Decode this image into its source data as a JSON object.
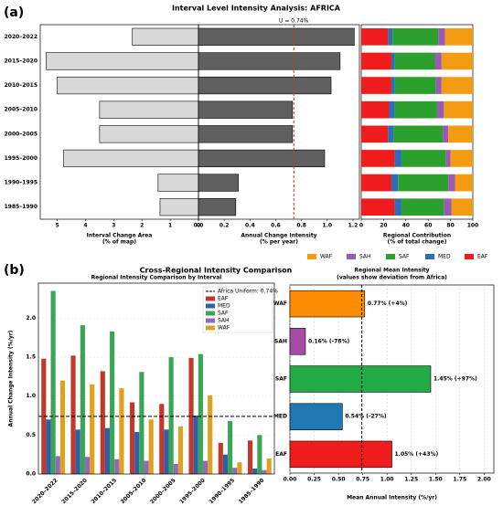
{
  "panels": {
    "a_label": "(a)",
    "a_title": "Interval Level Intensity Analysis: AFRICA",
    "b_label": "(b)",
    "b_title": "Cross-Regional Intensity Comparison"
  },
  "chart_data": [
    {
      "type": "barh",
      "xlabel": "Interval Change Area",
      "xlabel2": "(% of map)",
      "color": "#d9d9d9",
      "categories": [
        "2020–2022",
        "2015–2020",
        "2010–2015",
        "2005–2010",
        "2000–2005",
        "1995–2000",
        "1990–1995",
        "1985–1990"
      ],
      "values": [
        2.34,
        5.39,
        5.0,
        3.5,
        3.5,
        4.77,
        1.43,
        1.36
      ],
      "xlim": [
        5.6,
        0
      ],
      "xticks": [
        5,
        4,
        3,
        2,
        1,
        0
      ]
    },
    {
      "type": "barh",
      "xlabel": "Annual Change Intensity",
      "xlabel2": "(% per year)",
      "color": "#606060",
      "values": [
        1.21,
        1.1,
        1.03,
        0.73,
        0.73,
        0.98,
        0.31,
        0.29
      ],
      "xlim": [
        0,
        1.25
      ],
      "xticks": [
        {
          "value": 0,
          "label": "0.0"
        },
        0.2,
        0.4,
        0.6,
        0.8,
        {
          "value": 1,
          "label": "1.0"
        },
        1.2
      ],
      "reference_line": 0.74,
      "reference_label": "U = 0.74%",
      "reference_color": "#c0392b"
    },
    {
      "type": "stacked_barh",
      "xlabel": "Regional Contribution",
      "xlabel2": "(% of total change)",
      "xlim": [
        0,
        100
      ],
      "xticks": [
        0,
        20,
        40,
        60,
        80,
        100
      ],
      "series": [
        {
          "name": "EAF",
          "color": "#ee1c1c",
          "values": [
            24,
            27,
            27,
            25,
            24,
            30,
            27,
            30
          ]
        },
        {
          "name": "MED",
          "color": "#2a6fba",
          "values": [
            4,
            3,
            3,
            5,
            5,
            6,
            6,
            6
          ]
        },
        {
          "name": "SAF",
          "color": "#2ca02c",
          "values": [
            41,
            36,
            37,
            38,
            44,
            40,
            45,
            38
          ]
        },
        {
          "name": "SAH",
          "color": "#9b59b6",
          "values": [
            6,
            6,
            5,
            6,
            5,
            4,
            6,
            7
          ]
        },
        {
          "name": "WAF",
          "color": "#f39c12",
          "values": [
            25,
            28,
            28,
            26,
            22,
            20,
            16,
            19
          ]
        }
      ]
    },
    {
      "type": "bar",
      "title": "Regional Intensity Comparison by Interval",
      "ylabel": "Annual Change Intensity (%/yr)",
      "categories": [
        "2020–2022",
        "2015–2020",
        "2010–2015",
        "2005–2010",
        "2000–2005",
        "1995–2000",
        "1990–1995",
        "1985–1990"
      ],
      "ylim": [
        0,
        2.45
      ],
      "yticks": [
        {
          "value": 0,
          "label": "0.0"
        },
        0.5,
        {
          "value": 1,
          "label": "1.0"
        },
        1.5,
        {
          "value": 2,
          "label": "2.0"
        }
      ],
      "grid": true,
      "reference_line": 0.74,
      "reference_label": "Africa Uniform: 0.74%",
      "legend": "upper right",
      "series": [
        {
          "name": "EAF",
          "color": "#c0392b",
          "values": [
            1.48,
            1.52,
            1.32,
            0.92,
            0.9,
            1.49,
            0.4,
            0.43
          ]
        },
        {
          "name": "MED",
          "color": "#2e5fa8",
          "values": [
            0.7,
            0.57,
            0.59,
            0.54,
            0.57,
            0.75,
            0.25,
            0.07
          ]
        },
        {
          "name": "SAF",
          "color": "#3aa655",
          "values": [
            2.35,
            1.91,
            1.83,
            1.31,
            1.5,
            1.54,
            0.68,
            0.5
          ]
        },
        {
          "name": "SAH",
          "color": "#9467bd",
          "values": [
            0.23,
            0.22,
            0.19,
            0.17,
            0.13,
            0.17,
            0.08,
            0.05
          ]
        },
        {
          "name": "WAF",
          "color": "#e0a020",
          "values": [
            1.2,
            1.15,
            1.1,
            0.7,
            0.61,
            1.01,
            0.15,
            0.2
          ]
        }
      ]
    },
    {
      "type": "barh",
      "title": "Regional Mean Intensity",
      "subtitle": "(values show deviation from Africa)",
      "xlabel": "Mean Annual Intensity (%/yr)",
      "categories": [
        "WAF",
        "SAH",
        "SAF",
        "MED",
        "EAF"
      ],
      "values": [
        0.77,
        0.16,
        1.45,
        0.54,
        1.05
      ],
      "value_labels": [
        "0.77% (+4%)",
        "0.16% (-78%)",
        "1.45% (+97%)",
        "0.54% (-27%)",
        "1.05% (+43%)"
      ],
      "colors": [
        "#ff8c00",
        "#a64ca6",
        "#22aa44",
        "#1f77b4",
        "#ee1c1c"
      ],
      "xlim": [
        0,
        2.1
      ],
      "xticks": [
        {
          "value": 0,
          "label": "0.00"
        },
        0.25,
        {
          "value": 0.5,
          "label": "0.50"
        },
        0.75,
        {
          "value": 1,
          "label": "1.00"
        },
        1.25,
        {
          "value": 1.5,
          "label": "1.50"
        },
        1.75,
        {
          "value": 2,
          "label": "2.00"
        }
      ],
      "grid": true,
      "reference_line": 0.74
    }
  ]
}
